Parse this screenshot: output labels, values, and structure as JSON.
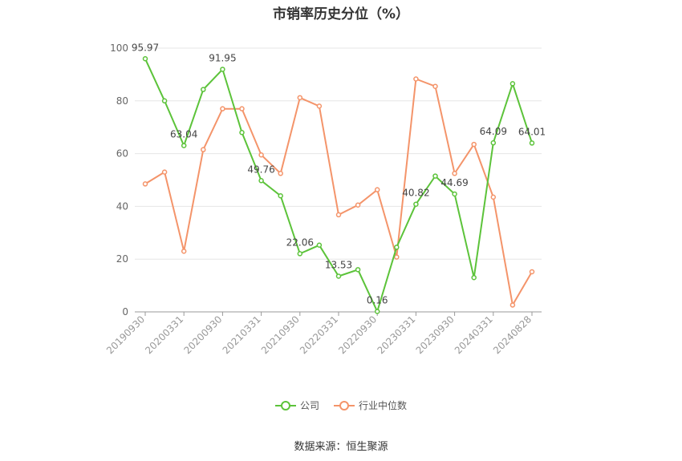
{
  "chart_data": {
    "type": "line",
    "title": "市销率历史分位（%）",
    "ylim": [
      0,
      100
    ],
    "yticks": [
      0,
      20,
      40,
      60,
      80,
      100
    ],
    "x": [
      "20190930",
      "20191231",
      "20200331",
      "20200630",
      "20200930",
      "20201231",
      "20210331",
      "20210630",
      "20210930",
      "20211231",
      "20220331",
      "20220630",
      "20220930",
      "20221231",
      "20230331",
      "20230630",
      "20230930",
      "20231231",
      "20240331",
      "20240630",
      "20240828"
    ],
    "xtick_labels": [
      "20190930",
      "20200331",
      "20200930",
      "20210331",
      "20210930",
      "20220331",
      "20220930",
      "20230331",
      "20230930",
      "20240331",
      "20240828"
    ],
    "xtick_indices": [
      0,
      2,
      4,
      6,
      8,
      10,
      12,
      14,
      16,
      18,
      20
    ],
    "series": [
      {
        "name": "公司",
        "color": "#5cc33a",
        "values": [
          95.97,
          80.0,
          63.04,
          84.3,
          91.95,
          68.0,
          49.76,
          44.0,
          22.06,
          25.3,
          13.53,
          16.0,
          0.16,
          24.5,
          40.82,
          51.5,
          44.69,
          13.0,
          64.09,
          86.5,
          64.01
        ],
        "labels": {
          "0": "95.97",
          "2": "63.04",
          "4": "91.95",
          "6": "49.76",
          "8": "22.06",
          "10": "13.53",
          "12": "0.16",
          "14": "40.82",
          "16": "44.69",
          "18": "64.09",
          "20": "64.01"
        }
      },
      {
        "name": "行业中位数",
        "color": "#f4946a",
        "values": [
          48.5,
          53.0,
          23.0,
          61.5,
          77.0,
          77.0,
          59.5,
          52.5,
          81.2,
          78.0,
          36.8,
          40.5,
          46.3,
          20.8,
          88.3,
          85.5,
          52.5,
          63.5,
          43.5,
          2.6,
          15.2
        ]
      }
    ]
  },
  "legend": {
    "company": "公司",
    "industry": "行业中位数"
  },
  "source": "数据来源：恒生聚源"
}
